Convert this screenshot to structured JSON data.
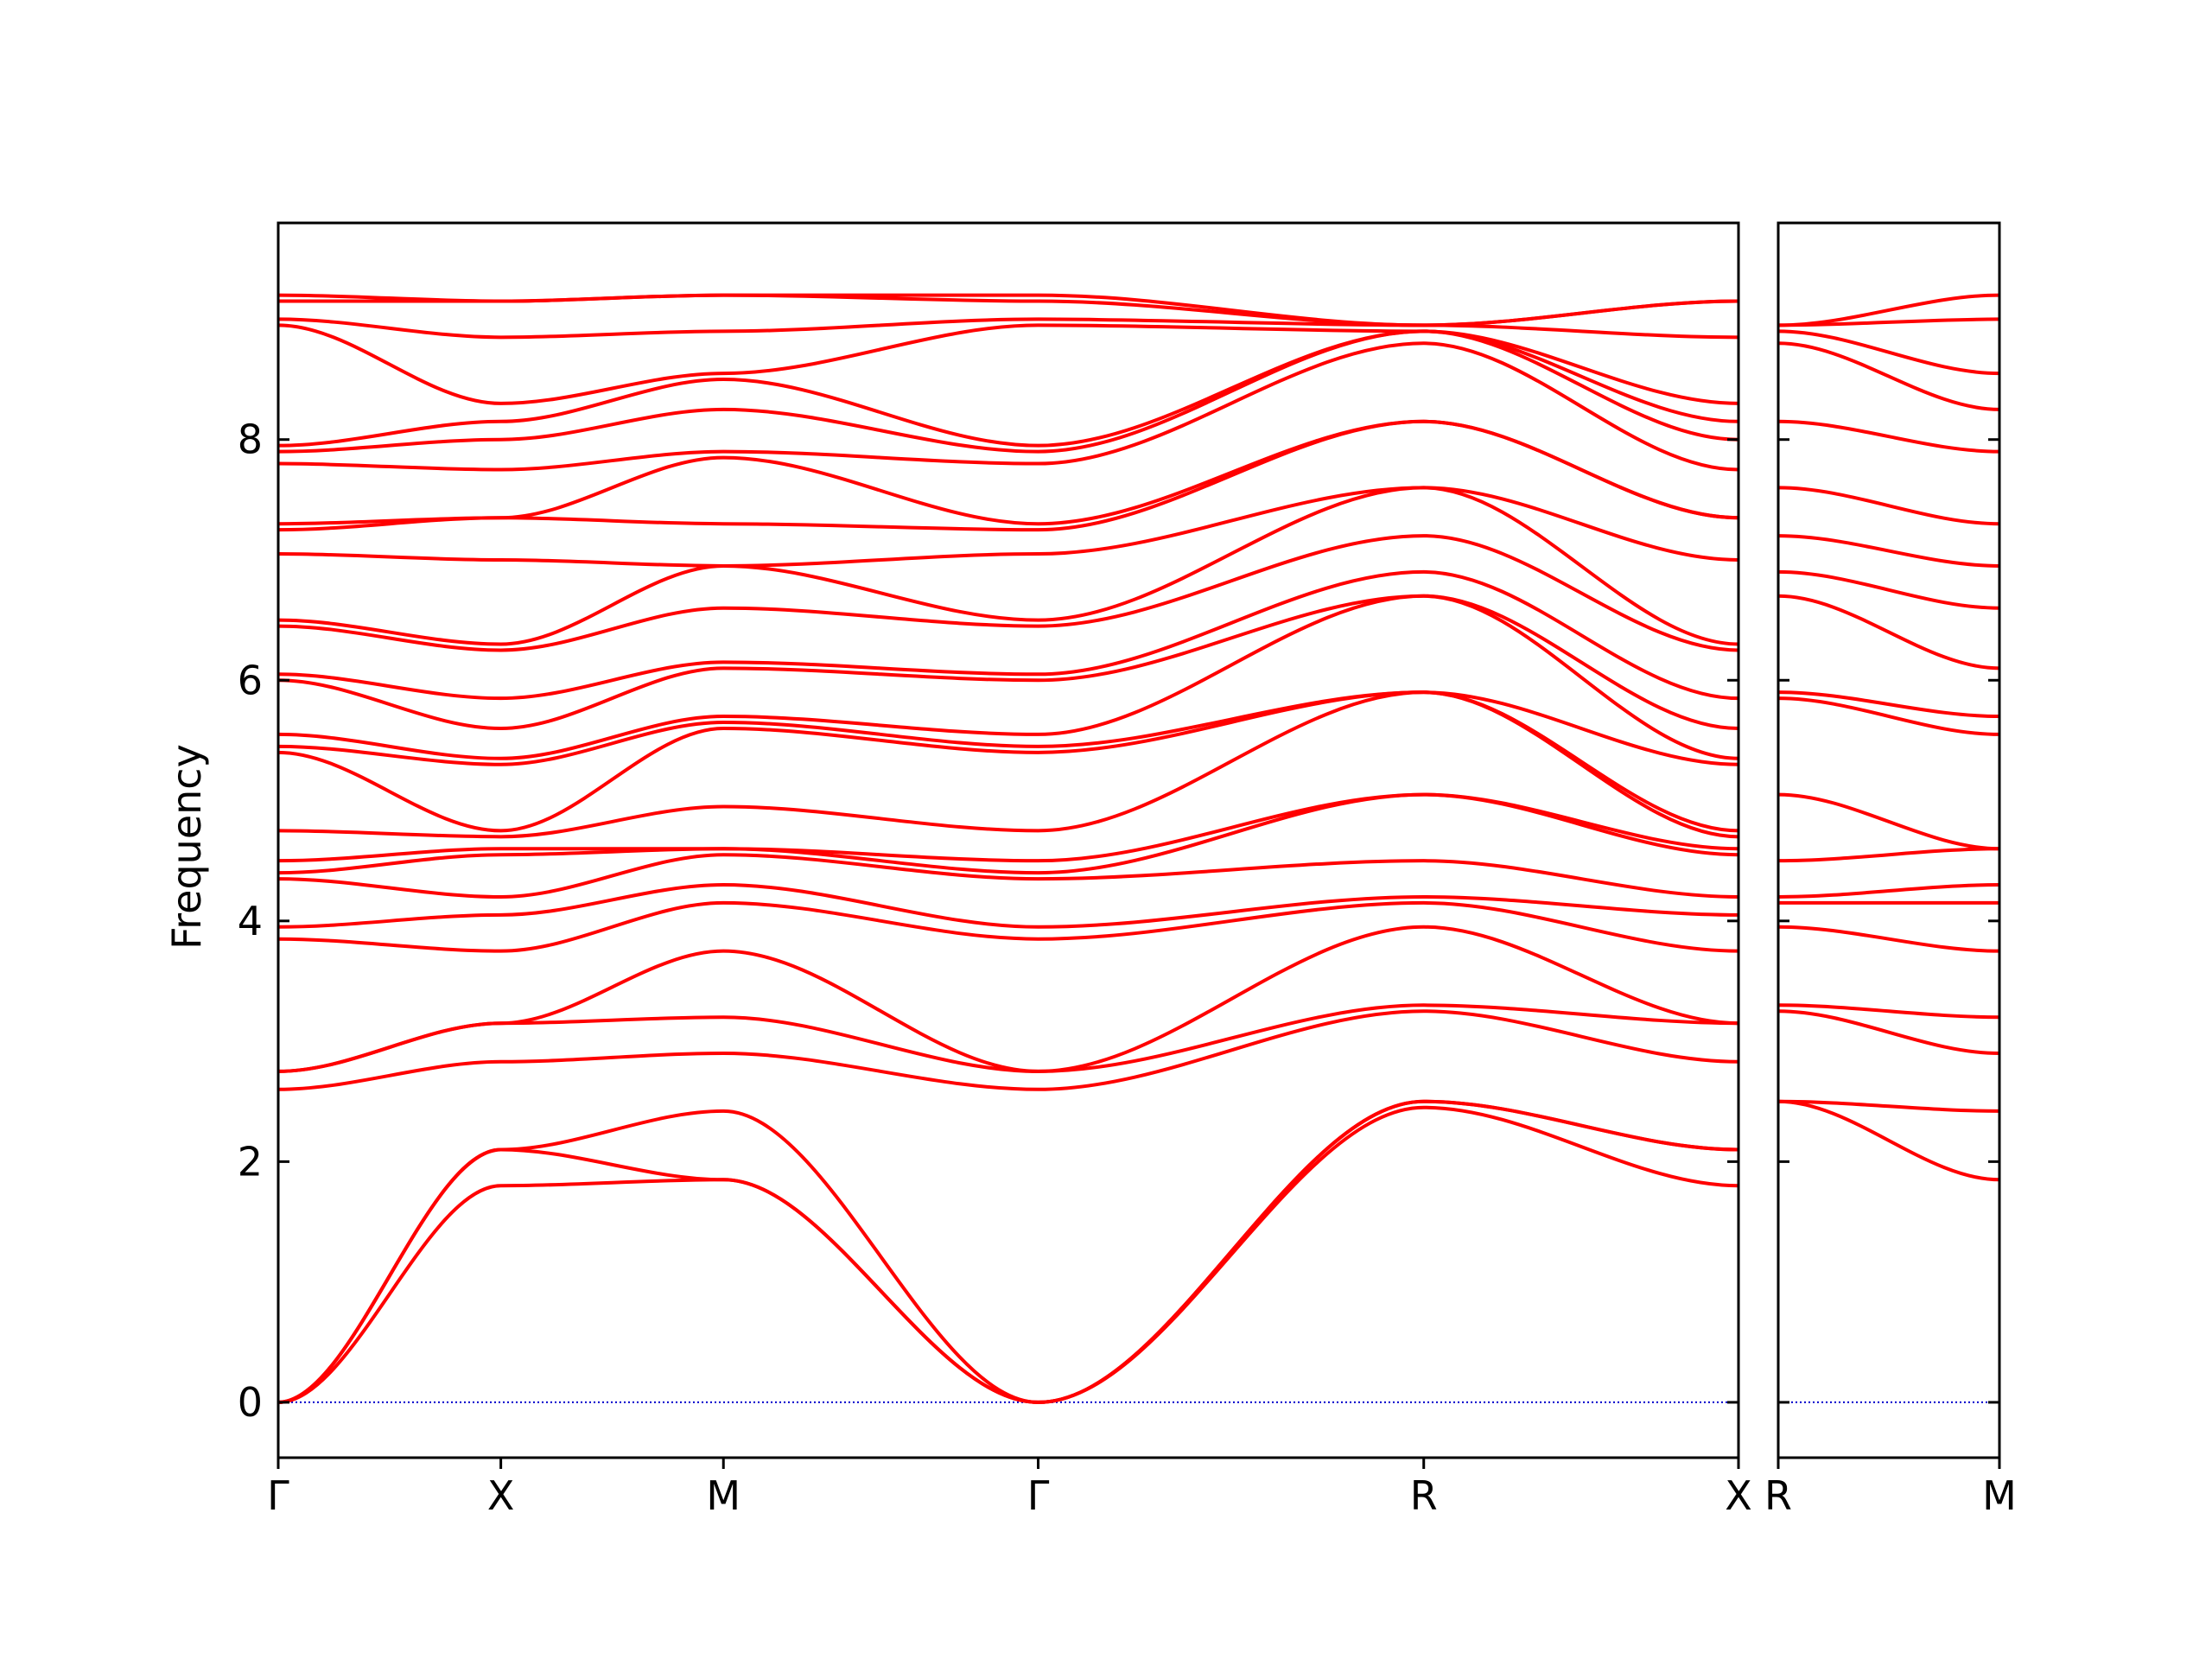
{
  "chart_data": [
    {
      "type": "line",
      "ylabel": "Frequency",
      "color": "#ff0000",
      "x": [
        0,
        0.5,
        1.0,
        1.707,
        2.573,
        3.28
      ],
      "xlim": [
        0,
        3.28
      ],
      "xticks": [
        {
          "value": 0,
          "label": "Γ"
        },
        {
          "value": 0.5,
          "label": "X"
        },
        {
          "value": 1.0,
          "label": "M"
        },
        {
          "value": 1.707,
          "label": "Γ"
        },
        {
          "value": 2.573,
          "label": "R"
        },
        {
          "value": 3.28,
          "label": "X"
        }
      ],
      "ylim": [
        -0.46,
        9.8
      ],
      "yticks": [
        0,
        2,
        4,
        6,
        8
      ],
      "reference_line": {
        "value": 0,
        "color": "#0000cc",
        "style": "dotted"
      },
      "series": [
        {
          "values": [
            0,
            1.8,
            1.85,
            0,
            2.45,
            1.8
          ]
        },
        {
          "values": [
            0,
            2.1,
            1.85,
            0,
            2.5,
            2.1
          ]
        },
        {
          "values": [
            0,
            2.1,
            2.42,
            0,
            2.5,
            2.1
          ]
        },
        {
          "values": [
            2.6,
            2.83,
            2.9,
            2.6,
            3.25,
            2.83
          ]
        },
        {
          "values": [
            2.75,
            3.15,
            3.2,
            2.75,
            3.3,
            3.15
          ]
        },
        {
          "values": [
            2.75,
            3.15,
            3.75,
            2.75,
            3.95,
            3.15
          ]
        },
        {
          "values": [
            3.85,
            3.75,
            4.15,
            3.85,
            4.15,
            3.75
          ]
        },
        {
          "values": [
            3.95,
            4.05,
            4.3,
            3.95,
            4.2,
            4.05
          ]
        },
        {
          "values": [
            4.35,
            4.2,
            4.55,
            4.35,
            4.5,
            4.2
          ]
        },
        {
          "values": [
            4.4,
            4.55,
            4.6,
            4.4,
            5.05,
            4.55
          ]
        },
        {
          "values": [
            4.5,
            4.6,
            4.6,
            4.5,
            5.05,
            4.6
          ]
        },
        {
          "values": [
            4.75,
            4.7,
            4.95,
            4.75,
            5.9,
            4.7
          ]
        },
        {
          "values": [
            5.4,
            4.75,
            5.6,
            5.4,
            5.9,
            4.75
          ]
        },
        {
          "values": [
            5.45,
            5.3,
            5.65,
            5.45,
            5.9,
            5.3
          ]
        },
        {
          "values": [
            5.55,
            5.35,
            5.7,
            5.55,
            6.7,
            5.35
          ]
        },
        {
          "values": [
            6.0,
            5.6,
            6.1,
            6.0,
            6.7,
            5.6
          ]
        },
        {
          "values": [
            6.05,
            5.85,
            6.15,
            6.05,
            6.9,
            5.85
          ]
        },
        {
          "values": [
            6.45,
            6.25,
            6.6,
            6.45,
            7.2,
            6.25
          ]
        },
        {
          "values": [
            6.5,
            6.3,
            6.95,
            6.5,
            7.6,
            6.3
          ]
        },
        {
          "values": [
            7.05,
            7.0,
            6.95,
            7.05,
            7.6,
            7.0
          ]
        },
        {
          "values": [
            7.25,
            7.35,
            7.3,
            7.25,
            8.15,
            7.35
          ]
        },
        {
          "values": [
            7.3,
            7.35,
            7.85,
            7.3,
            8.15,
            7.35
          ]
        },
        {
          "values": [
            7.8,
            7.75,
            7.9,
            7.8,
            8.8,
            7.75
          ]
        },
        {
          "values": [
            7.9,
            8.0,
            8.25,
            7.9,
            8.9,
            8.0
          ]
        },
        {
          "values": [
            7.95,
            8.15,
            8.5,
            7.95,
            8.9,
            8.15
          ]
        },
        {
          "values": [
            8.95,
            8.3,
            8.55,
            8.95,
            8.9,
            8.3
          ]
        },
        {
          "values": [
            9.0,
            8.85,
            8.9,
            9.0,
            8.95,
            8.85
          ]
        },
        {
          "values": [
            9.15,
            9.15,
            9.2,
            9.15,
            8.95,
            9.15
          ]
        },
        {
          "values": [
            9.2,
            9.15,
            9.2,
            9.2,
            8.95,
            9.15
          ]
        }
      ]
    },
    {
      "type": "line",
      "color": "#ff0000",
      "x": [
        0,
        0.5
      ],
      "xlim": [
        0,
        0.5
      ],
      "xticks": [
        {
          "value": 0,
          "label": "R"
        },
        {
          "value": 0.5,
          "label": "M"
        }
      ],
      "ylim": [
        -0.46,
        9.8
      ],
      "yticks": [
        0,
        2,
        4,
        6,
        8
      ],
      "reference_line": {
        "value": 0,
        "color": "#0000cc",
        "style": "dotted"
      },
      "series": [
        {
          "values": [
            2.5,
            1.85
          ]
        },
        {
          "values": [
            2.5,
            2.42
          ]
        },
        {
          "values": [
            3.25,
            2.9
          ]
        },
        {
          "values": [
            3.3,
            3.2
          ]
        },
        {
          "values": [
            3.95,
            3.75
          ]
        },
        {
          "values": [
            4.15,
            4.15
          ]
        },
        {
          "values": [
            4.2,
            4.3
          ]
        },
        {
          "values": [
            4.5,
            4.6
          ]
        },
        {
          "values": [
            5.05,
            4.6
          ]
        },
        {
          "values": [
            5.85,
            5.55
          ]
        },
        {
          "values": [
            5.9,
            5.7
          ]
        },
        {
          "values": [
            6.7,
            6.1
          ]
        },
        {
          "values": [
            6.9,
            6.6
          ]
        },
        {
          "values": [
            7.2,
            6.95
          ]
        },
        {
          "values": [
            7.6,
            7.3
          ]
        },
        {
          "values": [
            8.15,
            7.9
          ]
        },
        {
          "values": [
            8.8,
            8.25
          ]
        },
        {
          "values": [
            8.9,
            8.55
          ]
        },
        {
          "values": [
            8.95,
            9.0
          ]
        },
        {
          "values": [
            8.95,
            9.2
          ]
        }
      ]
    }
  ]
}
